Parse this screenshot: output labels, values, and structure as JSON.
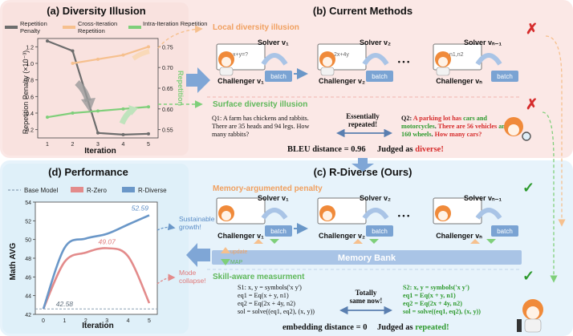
{
  "panels": {
    "a_title": "(a) Diversity Illusion",
    "b_title": "(b) Current Methods",
    "c_title": "(c) R-Diverse (Ours)",
    "d_title": "(d) Performance"
  },
  "panel_a": {
    "legend": {
      "rep_line1": "Repetition",
      "rep_line2": "Penalty",
      "cross_line1": "Cross-Iteration",
      "cross_line2": "Repetition",
      "intra": "Intra-Iteration Repetition"
    },
    "left_axis_label": "Repetition Penalty (×10⁻³)",
    "right_axis_label": "Repetition",
    "x_label": "Iteration"
  },
  "panel_b": {
    "local_label": "Local diversity illusion",
    "surface_label": "Surface diversity illusion",
    "solver_1": "Solver v₁",
    "solver_2": "Solver v₂",
    "solver_n": "Solver vₙ₋₁",
    "challenger_1": "Challenger v₁",
    "challenger_2": "Challenger v₂",
    "challenger_n": "Challenger vₙ",
    "batch": "batch",
    "dots": "• • •",
    "q1_lines": [
      "Q1: A farm has chickens and rabbits.",
      "There are 35 heads and 94 legs. How",
      "many rabbits?"
    ],
    "essentially_lines": [
      "Essentially",
      "repeated!"
    ],
    "q2_line1_pre": "Q2: ",
    "q2_line1_red": "A parking lot has ",
    "q2_line1_green": "cars",
    "q2_line1_post": " and",
    "q2_line2_green": "motorcycles",
    "q2_line2_mid": ". ",
    "q2_line2_red": "There are 56 vehicles",
    "q2_line2_post": " and",
    "q2_line3_green": "160 wheels",
    "q2_line3_mid": ". ",
    "q2_line3_red": "How many cars?",
    "bleu_text": "BLEU distance = 0.96",
    "judged_text": "Judged as ",
    "judged_value": "diverse!",
    "cross_mark": "✗",
    "check_mark": "✓"
  },
  "panel_c": {
    "memory_label": "Memory-argumented penalty",
    "skill_label": "Skill-aware measurment",
    "memory_bank": "Memory Bank",
    "update": "update",
    "map": "MAP",
    "s1_lines": [
      "S1: x, y = symbols('x y')",
      "eq1 = Eq(x + y, n1)",
      "eq2 = Eq(2x + 4y, n2)",
      "sol = solve((eq1, eq2), (x, y))"
    ],
    "totally_lines": [
      "Totally",
      "same now!"
    ],
    "s2_lines": [
      "S2: x, y = symbols('x y')",
      "eq1 = Eq(x + y, n1)",
      "eq2 = Eq(2x + 4y, n2)",
      "sol = solve((eq1, eq2), (x, y))"
    ],
    "embedding_text": "embedding distance = 0",
    "judged_text": "Judged as ",
    "judged_value": "repeated!"
  },
  "panel_d": {
    "legend_base": "Base Model",
    "legend_rzero": "R-Zero",
    "legend_rdiverse": "R-Diverse",
    "sustainable_lines": [
      "Sustainable",
      "growth!"
    ],
    "collapse_lines": [
      "Mode",
      "collapse!"
    ],
    "y_label": "Math AVG",
    "x_label": "Iteration"
  },
  "colors": {
    "rep_gray": "#6d6d6d",
    "cross_orange": "#f6c08e",
    "intra_green": "#7fcf7a",
    "r_zero": "#e38b8b",
    "r_diverse": "#6a97c8",
    "red_text": "#d62c2c",
    "green_text": "#2e9a2e",
    "pink_bg": "#fbe8e6",
    "blue_bg": "#e7f3fb"
  },
  "chart_data": [
    {
      "type": "line",
      "title": "(a) Diversity Illusion",
      "xlabel": "Iteration",
      "ylabel": "Repetition Penalty (×10⁻³)",
      "y2label": "Repetition",
      "x": [
        1,
        2,
        3,
        4,
        5
      ],
      "xticks": [
        "1",
        "2",
        "3",
        "4",
        "5"
      ],
      "ylim": [
        0.1,
        1.3
      ],
      "yticks": [
        "0.2",
        "0.4",
        "0.6",
        "0.8",
        "1.0",
        "1.2"
      ],
      "y2lim": [
        0.53,
        0.77
      ],
      "y2ticks": [
        "0.55",
        "0.60",
        "0.65",
        "0.70",
        "0.75"
      ],
      "series": [
        {
          "name": "Repetition Penalty",
          "axis": "left",
          "values": [
            1.27,
            1.15,
            0.16,
            0.14,
            0.15
          ]
        },
        {
          "name": "Cross-Iteration Repetition",
          "axis": "right",
          "values": [
            null,
            0.71,
            0.72,
            0.73,
            0.75
          ]
        },
        {
          "name": "Intra-Iteration Repetition",
          "axis": "right",
          "values": [
            0.58,
            0.59,
            0.595,
            0.6,
            0.605
          ]
        }
      ]
    },
    {
      "type": "line",
      "title": "(d) Performance",
      "xlabel": "Iteration",
      "ylabel": "Math AVG",
      "x": [
        0,
        1,
        2,
        3,
        4,
        5
      ],
      "xticks": [
        "0",
        "1",
        "2",
        "3",
        "4",
        "5"
      ],
      "ylim": [
        42,
        54
      ],
      "yticks": [
        "42",
        "44",
        "46",
        "48",
        "50",
        "52",
        "54"
      ],
      "baseline": 42.58,
      "series": [
        {
          "name": "R-Zero",
          "values": [
            42.58,
            47.6,
            48.6,
            49.07,
            48.2,
            43.2
          ]
        },
        {
          "name": "R-Diverse",
          "values": [
            42.58,
            49.1,
            50.1,
            50.6,
            51.6,
            52.59
          ]
        }
      ],
      "labels": [
        {
          "series": "Base Model",
          "text": "42.58"
        },
        {
          "series": "R-Zero",
          "text": "49.07"
        },
        {
          "series": "R-Diverse",
          "text": "52.59"
        }
      ]
    }
  ]
}
